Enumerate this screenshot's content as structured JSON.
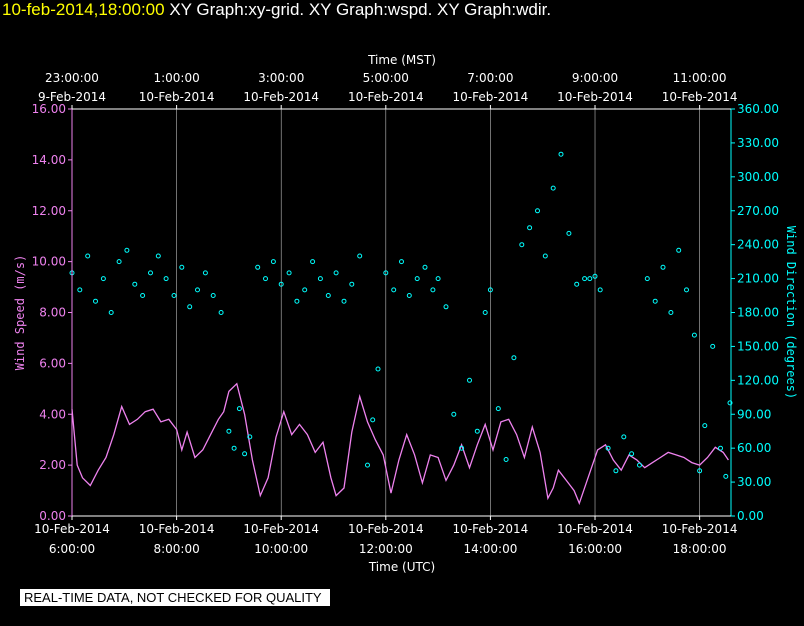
{
  "header": {
    "timestamp": "10-feb-2014,18:00:00",
    "graphs": "XY Graph:xy-grid.  XY Graph:wspd.  XY Graph:wdir."
  },
  "quality_note": "REAL-TIME DATA, NOT CHECKED FOR QUALITY",
  "colors": {
    "background": "#000000",
    "wind_speed": "#ee82ee",
    "wind_direction": "#00ffff",
    "axis_left": "#ee82ee",
    "axis_right": "#00ffff",
    "grid": "#ffffff",
    "text": "#ffffff"
  },
  "chart_data": {
    "type": "scatter",
    "x_range_utc_hours": [
      6,
      18.6
    ],
    "top_axis": {
      "label": "Time (MST)",
      "ticks": [
        {
          "t": 6,
          "time": "23:00:00",
          "date": "9-Feb-2014"
        },
        {
          "t": 8,
          "time": "1:00:00",
          "date": "10-Feb-2014"
        },
        {
          "t": 10,
          "time": "3:00:00",
          "date": "10-Feb-2014"
        },
        {
          "t": 12,
          "time": "5:00:00",
          "date": "10-Feb-2014"
        },
        {
          "t": 14,
          "time": "7:00:00",
          "date": "10-Feb-2014"
        },
        {
          "t": 16,
          "time": "9:00:00",
          "date": "10-Feb-2014"
        },
        {
          "t": 18,
          "time": "11:00:00",
          "date": "10-Feb-2014"
        }
      ]
    },
    "bottom_axis": {
      "label": "Time (UTC)",
      "ticks": [
        {
          "t": 6,
          "date": "10-Feb-2014",
          "time": "6:00:00"
        },
        {
          "t": 8,
          "date": "10-Feb-2014",
          "time": "8:00:00"
        },
        {
          "t": 10,
          "date": "10-Feb-2014",
          "time": "10:00:00"
        },
        {
          "t": 12,
          "date": "10-Feb-2014",
          "time": "12:00:00"
        },
        {
          "t": 14,
          "date": "10-Feb-2014",
          "time": "14:00:00"
        },
        {
          "t": 16,
          "date": "10-Feb-2014",
          "time": "16:00:00"
        },
        {
          "t": 18,
          "date": "10-Feb-2014",
          "time": "18:00:00"
        }
      ]
    },
    "left_axis": {
      "label": "Wind Speed (m/s)",
      "ylim": [
        0,
        16
      ],
      "ticks": [
        "0.00",
        "2.00",
        "4.00",
        "6.00",
        "8.00",
        "10.00",
        "12.00",
        "14.00",
        "16.00"
      ]
    },
    "right_axis": {
      "label": "Wind Direction (degrees)",
      "ylim": [
        0,
        360
      ],
      "ticks": [
        "0.00",
        "30.00",
        "60.00",
        "90.00",
        "120.00",
        "150.00",
        "180.00",
        "210.00",
        "240.00",
        "270.00",
        "300.00",
        "330.00",
        "360.00"
      ]
    },
    "grid_utc_hours": [
      8,
      10,
      12,
      14,
      16,
      18
    ],
    "series": [
      {
        "name": "wspd",
        "type": "line",
        "points": [
          [
            6.0,
            4.2
          ],
          [
            6.1,
            2.0
          ],
          [
            6.2,
            1.5
          ],
          [
            6.35,
            1.2
          ],
          [
            6.5,
            1.8
          ],
          [
            6.65,
            2.3
          ],
          [
            6.8,
            3.2
          ],
          [
            6.95,
            4.3
          ],
          [
            7.1,
            3.6
          ],
          [
            7.25,
            3.8
          ],
          [
            7.4,
            4.1
          ],
          [
            7.55,
            4.2
          ],
          [
            7.7,
            3.7
          ],
          [
            7.85,
            3.8
          ],
          [
            8.0,
            3.4
          ],
          [
            8.1,
            2.6
          ],
          [
            8.2,
            3.3
          ],
          [
            8.35,
            2.3
          ],
          [
            8.5,
            2.6
          ],
          [
            8.65,
            3.2
          ],
          [
            8.8,
            3.8
          ],
          [
            8.9,
            4.1
          ],
          [
            9.0,
            4.9
          ],
          [
            9.15,
            5.2
          ],
          [
            9.3,
            4.0
          ],
          [
            9.45,
            2.2
          ],
          [
            9.6,
            0.8
          ],
          [
            9.75,
            1.5
          ],
          [
            9.9,
            3.1
          ],
          [
            10.05,
            4.1
          ],
          [
            10.2,
            3.2
          ],
          [
            10.35,
            3.6
          ],
          [
            10.5,
            3.2
          ],
          [
            10.65,
            2.5
          ],
          [
            10.8,
            2.9
          ],
          [
            10.95,
            1.5
          ],
          [
            11.05,
            0.8
          ],
          [
            11.2,
            1.1
          ],
          [
            11.35,
            3.3
          ],
          [
            11.5,
            4.7
          ],
          [
            11.65,
            3.7
          ],
          [
            11.8,
            3.0
          ],
          [
            11.95,
            2.4
          ],
          [
            12.1,
            0.9
          ],
          [
            12.25,
            2.2
          ],
          [
            12.4,
            3.2
          ],
          [
            12.55,
            2.4
          ],
          [
            12.7,
            1.3
          ],
          [
            12.85,
            2.4
          ],
          [
            13.0,
            2.3
          ],
          [
            13.15,
            1.4
          ],
          [
            13.3,
            2.0
          ],
          [
            13.45,
            2.8
          ],
          [
            13.6,
            1.9
          ],
          [
            13.75,
            2.8
          ],
          [
            13.9,
            3.6
          ],
          [
            14.05,
            2.6
          ],
          [
            14.2,
            3.7
          ],
          [
            14.35,
            3.8
          ],
          [
            14.5,
            3.2
          ],
          [
            14.65,
            2.3
          ],
          [
            14.8,
            3.5
          ],
          [
            14.95,
            2.5
          ],
          [
            15.1,
            0.7
          ],
          [
            15.2,
            1.1
          ],
          [
            15.3,
            1.8
          ],
          [
            15.45,
            1.4
          ],
          [
            15.6,
            1.0
          ],
          [
            15.7,
            0.5
          ],
          [
            16.05,
            2.6
          ],
          [
            16.2,
            2.8
          ],
          [
            16.35,
            2.2
          ],
          [
            16.5,
            1.8
          ],
          [
            16.65,
            2.4
          ],
          [
            16.8,
            2.2
          ],
          [
            16.95,
            1.9
          ],
          [
            17.1,
            2.1
          ],
          [
            17.25,
            2.3
          ],
          [
            17.4,
            2.5
          ],
          [
            17.55,
            2.4
          ],
          [
            17.7,
            2.3
          ],
          [
            17.85,
            2.1
          ],
          [
            18.0,
            2.0
          ],
          [
            18.15,
            2.3
          ],
          [
            18.3,
            2.7
          ],
          [
            18.45,
            2.5
          ],
          [
            18.55,
            2.2
          ]
        ]
      },
      {
        "name": "wdir",
        "type": "scatter",
        "points": [
          [
            6.0,
            215
          ],
          [
            6.15,
            200
          ],
          [
            6.3,
            230
          ],
          [
            6.45,
            190
          ],
          [
            6.6,
            210
          ],
          [
            6.75,
            180
          ],
          [
            6.9,
            225
          ],
          [
            7.05,
            235
          ],
          [
            7.2,
            205
          ],
          [
            7.35,
            195
          ],
          [
            7.5,
            215
          ],
          [
            7.65,
            230
          ],
          [
            7.8,
            210
          ],
          [
            7.95,
            195
          ],
          [
            8.1,
            220
          ],
          [
            8.25,
            185
          ],
          [
            8.4,
            200
          ],
          [
            8.55,
            215
          ],
          [
            8.7,
            195
          ],
          [
            8.85,
            180
          ],
          [
            9.0,
            75
          ],
          [
            9.1,
            60
          ],
          [
            9.2,
            95
          ],
          [
            9.3,
            55
          ],
          [
            9.4,
            70
          ],
          [
            9.55,
            220
          ],
          [
            9.7,
            210
          ],
          [
            9.85,
            225
          ],
          [
            10.0,
            205
          ],
          [
            10.15,
            215
          ],
          [
            10.3,
            190
          ],
          [
            10.45,
            200
          ],
          [
            10.6,
            225
          ],
          [
            10.75,
            210
          ],
          [
            10.9,
            195
          ],
          [
            11.05,
            215
          ],
          [
            11.2,
            190
          ],
          [
            11.35,
            205
          ],
          [
            11.5,
            230
          ],
          [
            11.65,
            45
          ],
          [
            11.75,
            85
          ],
          [
            11.85,
            130
          ],
          [
            12.0,
            215
          ],
          [
            12.15,
            200
          ],
          [
            12.3,
            225
          ],
          [
            12.45,
            195
          ],
          [
            12.6,
            210
          ],
          [
            12.75,
            220
          ],
          [
            12.9,
            200
          ],
          [
            13.0,
            210
          ],
          [
            13.15,
            185
          ],
          [
            13.3,
            90
          ],
          [
            13.45,
            60
          ],
          [
            13.6,
            120
          ],
          [
            13.75,
            75
          ],
          [
            13.9,
            180
          ],
          [
            14.0,
            200
          ],
          [
            14.15,
            95
          ],
          [
            14.3,
            50
          ],
          [
            14.45,
            140
          ],
          [
            14.6,
            240
          ],
          [
            14.75,
            255
          ],
          [
            14.9,
            270
          ],
          [
            15.05,
            230
          ],
          [
            15.2,
            290
          ],
          [
            15.35,
            320
          ],
          [
            15.5,
            250
          ],
          [
            15.65,
            205
          ],
          [
            15.8,
            210
          ],
          [
            15.9,
            210
          ],
          [
            16.0,
            212
          ],
          [
            16.1,
            200
          ],
          [
            16.25,
            60
          ],
          [
            16.4,
            40
          ],
          [
            16.55,
            70
          ],
          [
            16.7,
            55
          ],
          [
            16.85,
            45
          ],
          [
            17.0,
            210
          ],
          [
            17.15,
            190
          ],
          [
            17.3,
            220
          ],
          [
            17.45,
            180
          ],
          [
            17.6,
            235
          ],
          [
            17.75,
            200
          ],
          [
            17.9,
            160
          ],
          [
            18.0,
            40
          ],
          [
            18.1,
            80
          ],
          [
            18.25,
            150
          ],
          [
            18.4,
            60
          ],
          [
            18.5,
            35
          ],
          [
            18.58,
            100
          ]
        ]
      }
    ]
  }
}
